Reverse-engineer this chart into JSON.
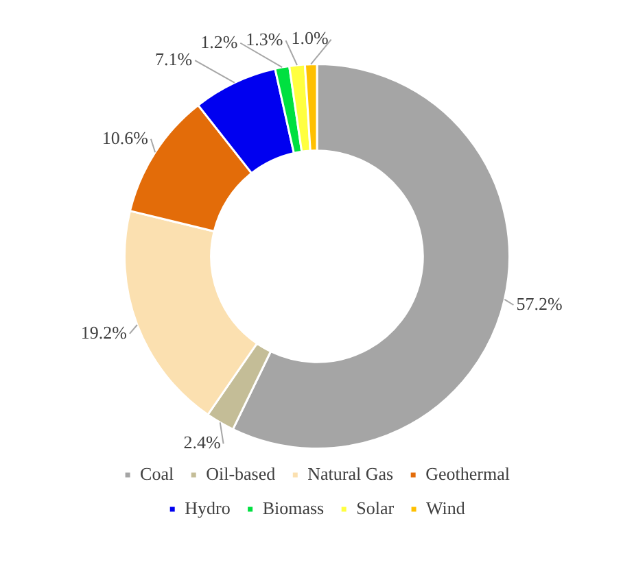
{
  "chart_data": {
    "type": "donut",
    "categories": [
      "Coal",
      "Oil-based",
      "Natural Gas",
      "Geothermal",
      "Hydro",
      "Biomass",
      "Solar",
      "Wind"
    ],
    "values": [
      57.2,
      2.4,
      19.2,
      10.6,
      7.1,
      1.2,
      1.3,
      1.0
    ],
    "colors": [
      "#a5a5a5",
      "#c4bd97",
      "#fbe0b0",
      "#e36c09",
      "#0000f0",
      "#00e040",
      "#ffff40",
      "#ffc000"
    ],
    "value_labels": [
      "57.2%",
      "2.4%",
      "19.2%",
      "10.6%",
      "7.1%",
      "1.2%",
      "1.3%",
      "1.0%"
    ],
    "legend": "bottom"
  }
}
